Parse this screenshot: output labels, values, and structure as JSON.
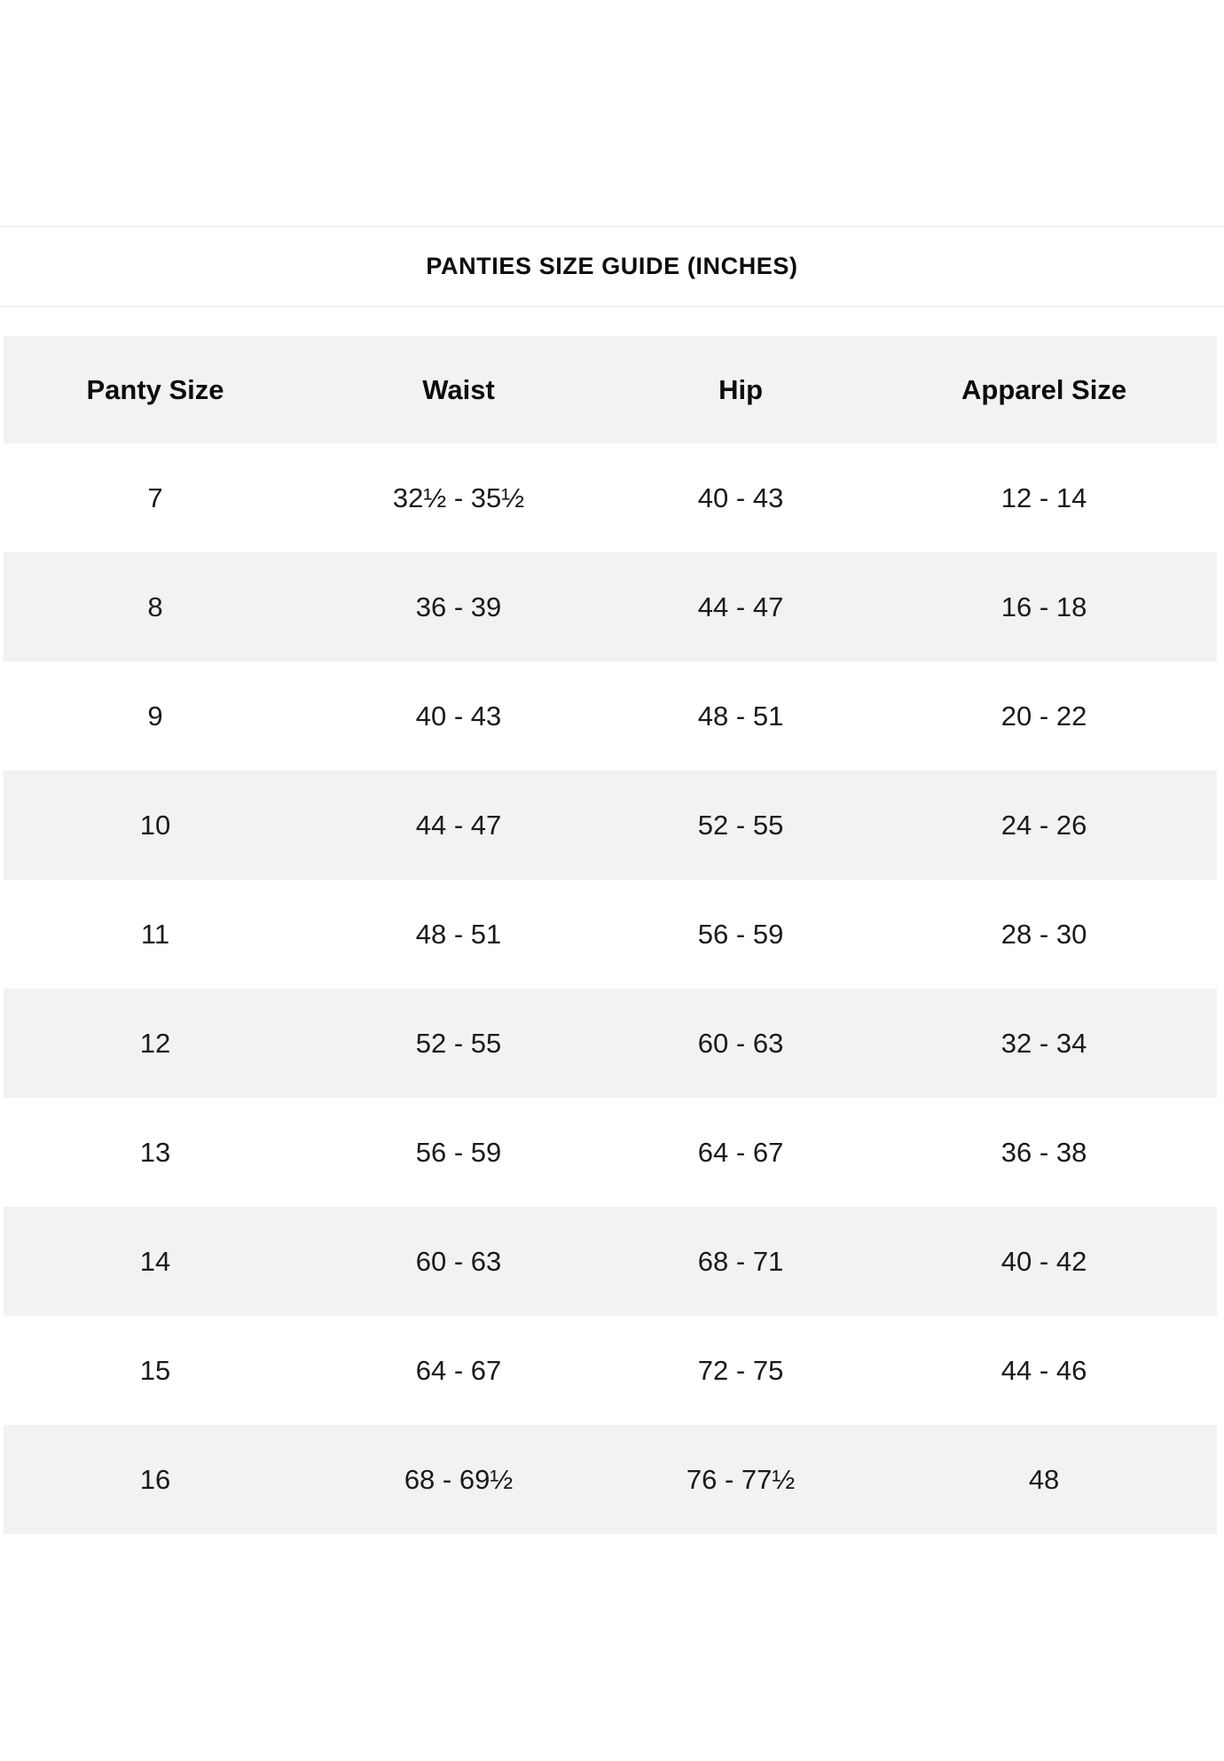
{
  "title": {
    "text": "PANTIES SIZE GUIDE (INCHES)"
  },
  "table": {
    "columns": [
      "Panty Size",
      "Waist",
      "Hip",
      "Apparel Size"
    ],
    "rows": [
      [
        "7",
        "32½ - 35½",
        "40 - 43",
        "12 - 14"
      ],
      [
        "8",
        "36 - 39",
        "44 - 47",
        "16 - 18"
      ],
      [
        "9",
        "40 - 43",
        "48 - 51",
        "20 - 22"
      ],
      [
        "10",
        "44 - 47",
        "52 - 55",
        "24 - 26"
      ],
      [
        "11",
        "48 - 51",
        "56 - 59",
        "28 - 30"
      ],
      [
        "12",
        "52 - 55",
        "60 - 63",
        "32 - 34"
      ],
      [
        "13",
        "56 - 59",
        "64 - 67",
        "36 - 38"
      ],
      [
        "14",
        "60 - 63",
        "68 - 71",
        "40 - 42"
      ],
      [
        "15",
        "64 - 67",
        "72 - 75",
        "44 - 46"
      ],
      [
        "16",
        "68 - 69½",
        "76 - 77½",
        "48"
      ]
    ]
  },
  "colors": {
    "stripe": "#f2f2f2",
    "divider": "#e5e5e5",
    "heading_text": "#0c0c0c",
    "cell_text": "#1a1a1a",
    "background": "#ffffff"
  }
}
